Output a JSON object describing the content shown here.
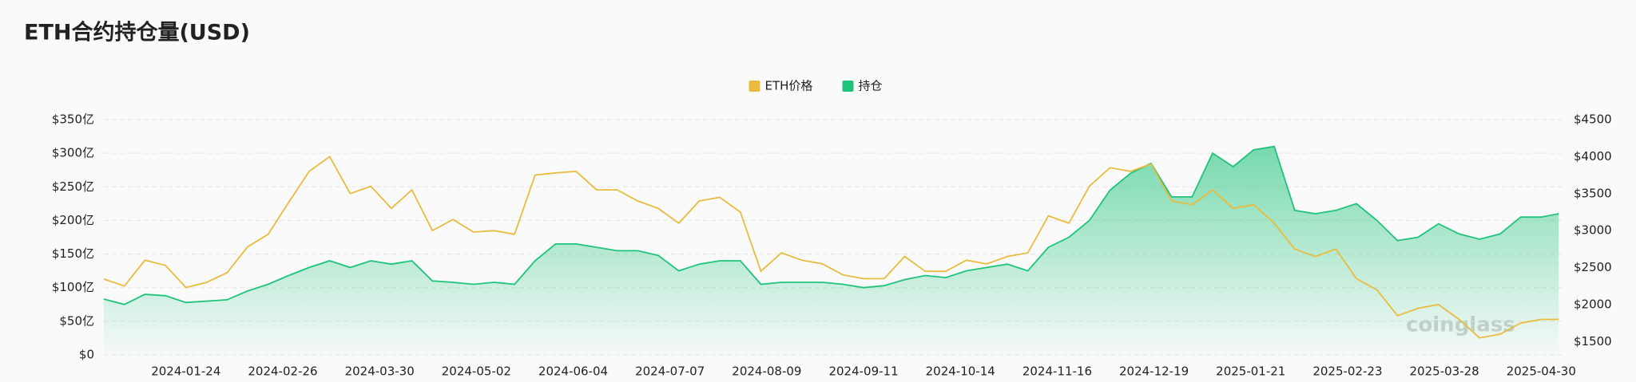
{
  "chart_data": {
    "type": "line",
    "title": "ETH合约持仓量(USD)",
    "watermark": "coinglass",
    "legend": "top",
    "x": [
      "2023-12-27",
      "2024-01-03",
      "2024-01-10",
      "2024-01-17",
      "2024-01-24",
      "2024-01-31",
      "2024-02-07",
      "2024-02-14",
      "2024-02-21",
      "2024-02-28",
      "2024-03-06",
      "2024-03-13",
      "2024-03-20",
      "2024-03-27",
      "2024-04-03",
      "2024-04-10",
      "2024-04-17",
      "2024-04-24",
      "2024-05-01",
      "2024-05-08",
      "2024-05-15",
      "2024-05-22",
      "2024-05-29",
      "2024-06-05",
      "2024-06-12",
      "2024-06-19",
      "2024-06-26",
      "2024-07-03",
      "2024-07-10",
      "2024-07-17",
      "2024-07-24",
      "2024-07-31",
      "2024-08-07",
      "2024-08-14",
      "2024-08-21",
      "2024-08-28",
      "2024-09-04",
      "2024-09-11",
      "2024-09-18",
      "2024-09-25",
      "2024-10-02",
      "2024-10-09",
      "2024-10-16",
      "2024-10-23",
      "2024-10-30",
      "2024-11-06",
      "2024-11-13",
      "2024-11-20",
      "2024-11-27",
      "2024-12-04",
      "2024-12-11",
      "2024-12-18",
      "2024-12-25",
      "2025-01-01",
      "2025-01-08",
      "2025-01-15",
      "2025-01-22",
      "2025-01-29",
      "2025-02-05",
      "2025-02-12",
      "2025-02-19",
      "2025-02-26",
      "2025-03-05",
      "2025-03-12",
      "2025-03-19",
      "2025-03-26",
      "2025-04-02",
      "2025-04-09",
      "2025-04-16",
      "2025-04-23",
      "2025-04-30",
      "2025-05-06"
    ],
    "series": [
      {
        "name": "ETH价格",
        "color": "#e9bb3f",
        "axis": "y2",
        "values": [
          2345,
          2250,
          2600,
          2530,
          2230,
          2300,
          2430,
          2780,
          2950,
          3380,
          3800,
          4000,
          3500,
          3600,
          3300,
          3550,
          3000,
          3150,
          2980,
          3000,
          2950,
          3750,
          3780,
          3800,
          3550,
          3550,
          3400,
          3300,
          3100,
          3400,
          3450,
          3250,
          2450,
          2700,
          2600,
          2550,
          2400,
          2350,
          2350,
          2650,
          2450,
          2450,
          2600,
          2550,
          2650,
          2700,
          3200,
          3100,
          3600,
          3850,
          3800,
          3900,
          3400,
          3350,
          3550,
          3300,
          3350,
          3100,
          2750,
          2650,
          2750,
          2350,
          2200,
          1850,
          1950,
          2000,
          1800,
          1550,
          1600,
          1750,
          1800,
          1800
        ]
      },
      {
        "name": "持仓",
        "color": "#1fc47a",
        "values": [
          83,
          75,
          90,
          88,
          78,
          80,
          82,
          95,
          105,
          118,
          130,
          140,
          130,
          140,
          135,
          140,
          110,
          108,
          105,
          108,
          105,
          140,
          165,
          165,
          160,
          155,
          155,
          148,
          125,
          135,
          140,
          140,
          105,
          108,
          108,
          108,
          105,
          100,
          103,
          112,
          118,
          115,
          125,
          130,
          135,
          125,
          160,
          175,
          200,
          245,
          270,
          285,
          235,
          235,
          300,
          280,
          305,
          310,
          215,
          210,
          215,
          225,
          200,
          170,
          175,
          195,
          180,
          172,
          180,
          205,
          205,
          210
        ]
      }
    ],
    "xlim": [
      "2023-12-27",
      "2025-05-07"
    ],
    "xticks": [
      "2024-01-24",
      "2024-02-26",
      "2024-03-30",
      "2024-05-02",
      "2024-06-04",
      "2024-07-07",
      "2024-08-09",
      "2024-09-11",
      "2024-10-14",
      "2024-11-16",
      "2024-12-19",
      "2025-01-21",
      "2025-02-23",
      "2025-03-28",
      "2025-04-30"
    ],
    "ylim": [
      0,
      350
    ],
    "yticks": [
      {
        "value": 0,
        "label": "$0"
      },
      {
        "value": 50,
        "label": "$50亿"
      },
      {
        "value": 100,
        "label": "$100亿"
      },
      {
        "value": 150,
        "label": "$150亿"
      },
      {
        "value": 200,
        "label": "$200亿"
      },
      {
        "value": 250,
        "label": "$250亿"
      },
      {
        "value": 300,
        "label": "$300亿"
      },
      {
        "value": 350,
        "label": "$350亿"
      }
    ],
    "y2lim": [
      1320,
      4500
    ],
    "y2ticks": [
      {
        "value": 1500,
        "label": "$1500"
      },
      {
        "value": 2000,
        "label": "$2000"
      },
      {
        "value": 2500,
        "label": "$2500"
      },
      {
        "value": 3000,
        "label": "$3000"
      },
      {
        "value": 3500,
        "label": "$3500"
      },
      {
        "value": 4000,
        "label": "$4000"
      },
      {
        "value": 4500,
        "label": "$4500"
      }
    ],
    "grid": true
  }
}
